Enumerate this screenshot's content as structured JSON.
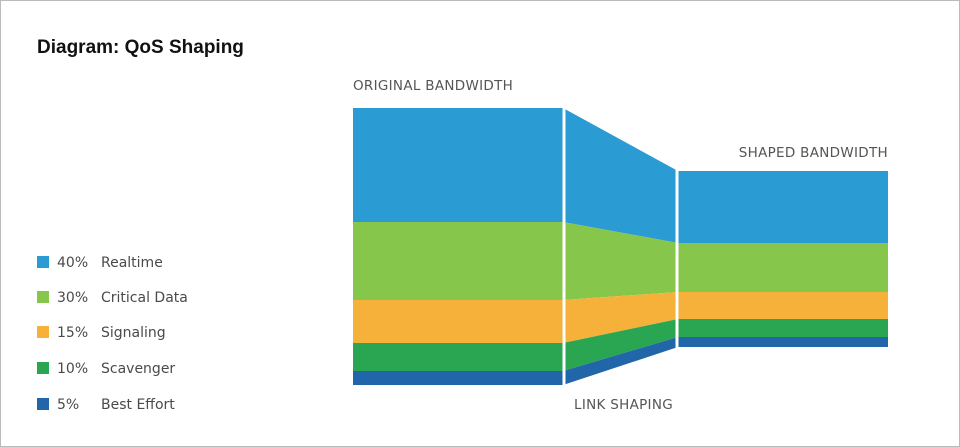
{
  "title": "Diagram: QoS Shaping",
  "labels": {
    "original": "ORIGINAL BANDWIDTH",
    "shaped": "SHAPED BANDWIDTH",
    "link": "LINK SHAPING"
  },
  "legend": {
    "items": [
      {
        "percent": "40%",
        "label": "Realtime"
      },
      {
        "percent": "30%",
        "label": "Critical Data"
      },
      {
        "percent": "15%",
        "label": "Signaling"
      },
      {
        "percent": "10%",
        "label": "Scavenger"
      },
      {
        "percent": "5%",
        "label": "Best Effort"
      }
    ]
  }
}
